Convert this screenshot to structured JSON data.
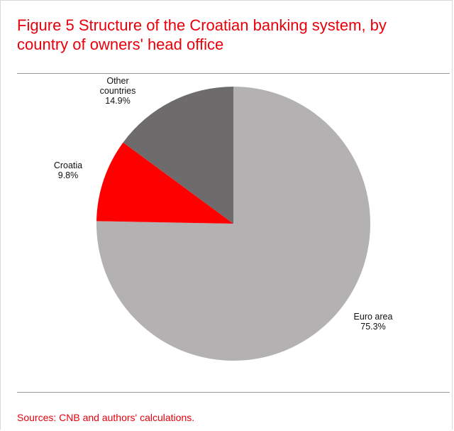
{
  "figure": {
    "title": "Figure 5 Structure of the Croatian banking system, by country of owners' head office",
    "source": "Sources: CNB and authors' calculations."
  },
  "colors": {
    "title": "#e8000b",
    "source": "#e8000b",
    "rule": "#9a9a9a"
  },
  "chart_data": {
    "type": "pie",
    "title": "Figure 5 Structure of the Croatian banking system, by country of owners' head office",
    "start": "12 o'clock",
    "direction": "clockwise",
    "slices": [
      {
        "label_lines": [
          "Euro area",
          "75.3%"
        ],
        "label": "Euro area",
        "value": 75.3,
        "value_label": "75.3%",
        "color": "#b3b1b2"
      },
      {
        "label_lines": [
          "Croatia",
          "9.8%"
        ],
        "label": "Croatia",
        "value": 9.8,
        "value_label": "9.8%",
        "color": "#ff0000"
      },
      {
        "label_lines": [
          "Other",
          "countries",
          "14.9%"
        ],
        "label": "Other countries",
        "value": 14.9,
        "value_label": "14.9%",
        "color": "#6d6b6c"
      }
    ]
  }
}
